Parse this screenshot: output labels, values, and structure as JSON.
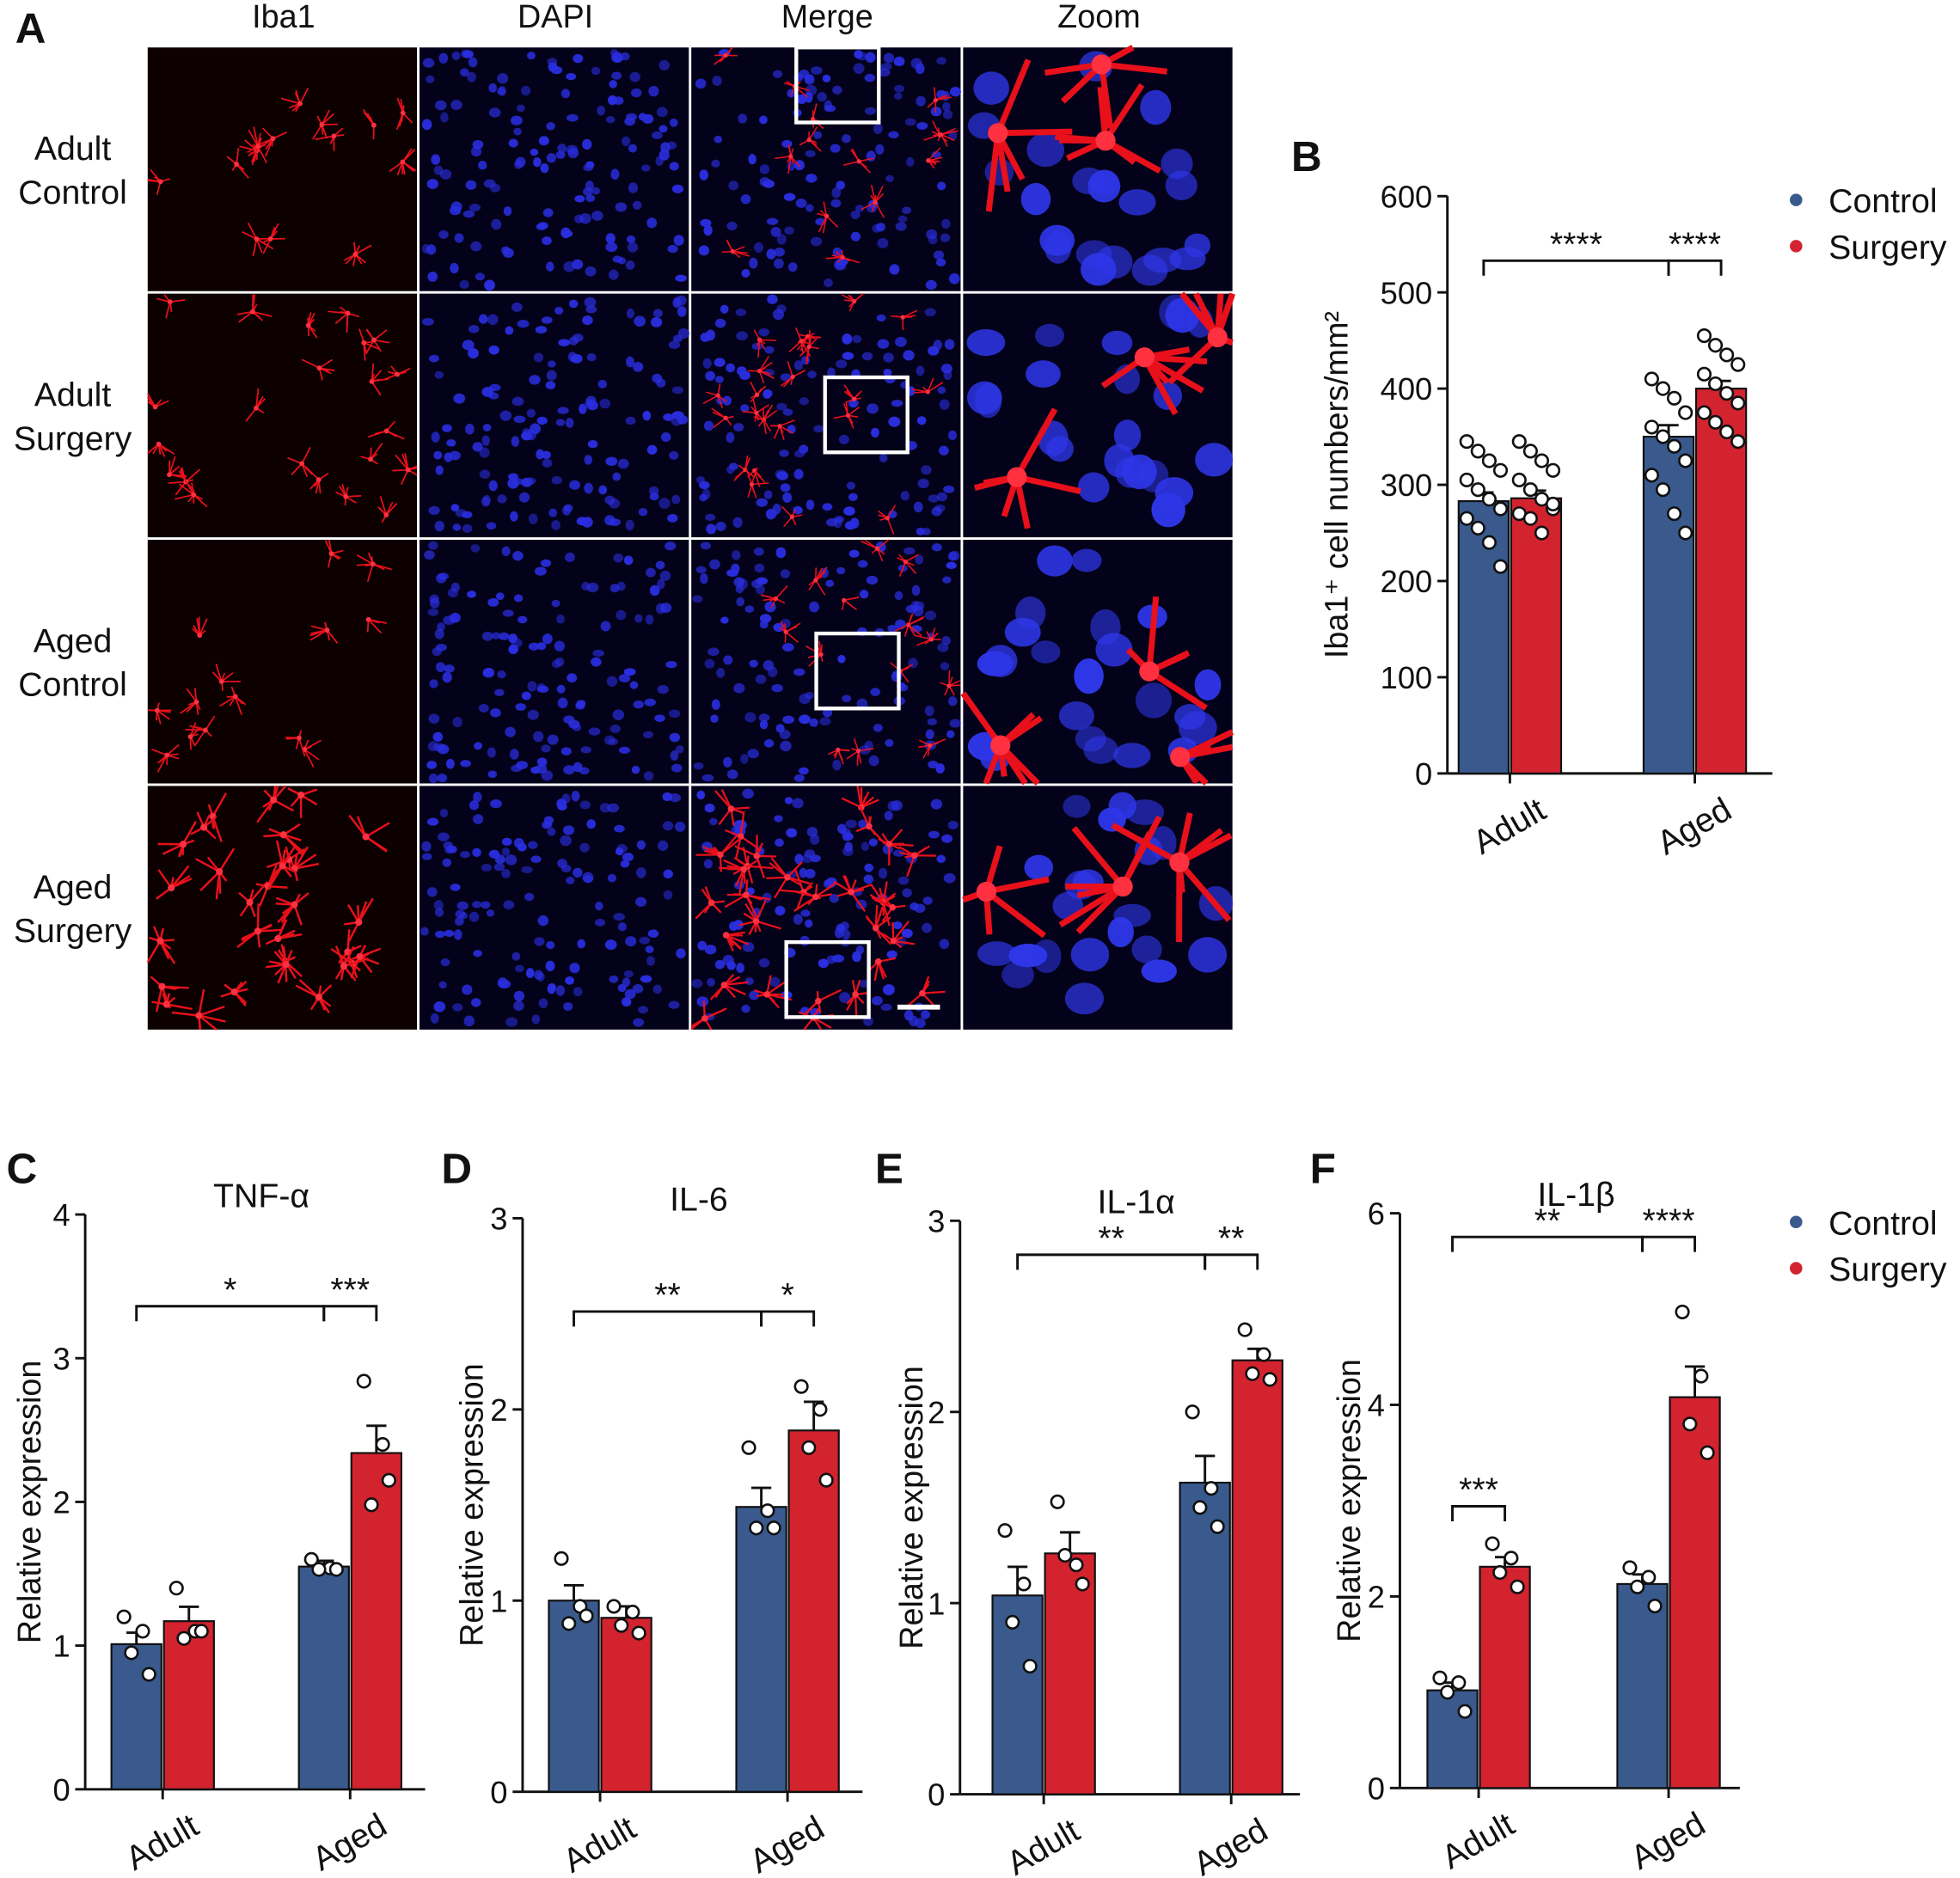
{
  "image_panel": {
    "label": "A",
    "columns": [
      "Iba1",
      "DAPI",
      "Merge",
      "Zoom"
    ],
    "rows": [
      [
        "Adult",
        "Control"
      ],
      [
        "Adult",
        "Surgery"
      ],
      [
        "Aged",
        "Control"
      ],
      [
        "Aged",
        "Surgery"
      ]
    ]
  },
  "chart_data": [
    {
      "type": "bar",
      "panel": "B",
      "ylabel": "Iba1⁺ cell numbers/mm²",
      "categories": [
        "Adult",
        "Aged"
      ],
      "series": [
        {
          "name": "Control",
          "color": "#3a5a8e",
          "values": [
            283,
            350
          ],
          "errors": [
            9,
            12
          ],
          "points": [
            [
              345,
              335,
              325,
              315,
              305,
              295,
              285,
              275,
              265,
              255,
              240,
              215
            ],
            [
              410,
              400,
              390,
              375,
              360,
              350,
              340,
              325,
              310,
              295,
              270,
              250
            ]
          ]
        },
        {
          "name": "Surgery",
          "color": "#d3232f",
          "values": [
            286,
            400
          ],
          "errors": [
            8,
            8
          ],
          "points": [
            [
              345,
              335,
              325,
              315,
              305,
              295,
              285,
              275,
              270,
              265,
              250,
              280
            ],
            [
              455,
              445,
              435,
              425,
              415,
              405,
              395,
              385,
              375,
              365,
              355,
              345
            ]
          ]
        }
      ],
      "ylim": [
        0,
        600
      ],
      "yticks": [
        0,
        100,
        200,
        300,
        400,
        500,
        600
      ],
      "significance": [
        {
          "label": "****",
          "between": [
            [
              0,
              0
            ],
            [
              1,
              0
            ]
          ]
        },
        {
          "label": "****",
          "between": [
            [
              1,
              0
            ],
            [
              1,
              1
            ]
          ]
        }
      ],
      "legend": true
    },
    {
      "type": "bar",
      "panel": "C",
      "title": "TNF-α",
      "ylabel": "Relative expression",
      "categories": [
        "Adult",
        "Aged"
      ],
      "series": [
        {
          "name": "Control",
          "color": "#3a5a8e",
          "values": [
            1.01,
            1.55
          ],
          "errors": [
            0.08,
            0.04
          ],
          "points": [
            [
              1.2,
              1.1,
              0.95,
              0.8
            ],
            [
              1.6,
              1.54,
              1.53,
              1.53
            ]
          ]
        },
        {
          "name": "Surgery",
          "color": "#d3232f",
          "values": [
            1.17,
            2.34
          ],
          "errors": [
            0.1,
            0.19
          ],
          "points": [
            [
              1.4,
              1.1,
              1.05,
              1.1
            ],
            [
              2.84,
              2.4,
              1.98,
              2.15
            ]
          ]
        }
      ],
      "ylim": [
        0,
        4
      ],
      "yticks": [
        0,
        1,
        2,
        3,
        4
      ],
      "significance": [
        {
          "label": "*",
          "between": [
            [
              0,
              0
            ],
            [
              1,
              0
            ]
          ]
        },
        {
          "label": "***",
          "between": [
            [
              1,
              0
            ],
            [
              1,
              1
            ]
          ]
        }
      ],
      "legend": false
    },
    {
      "type": "bar",
      "panel": "D",
      "title": "IL-6",
      "ylabel": "Relative expression",
      "categories": [
        "Adult",
        "Aged"
      ],
      "series": [
        {
          "name": "Control",
          "color": "#3a5a8e",
          "values": [
            1.0,
            1.49
          ],
          "errors": [
            0.08,
            0.1
          ],
          "points": [
            [
              1.22,
              0.97,
              0.88,
              0.92
            ],
            [
              1.8,
              1.47,
              1.38,
              1.38
            ]
          ]
        },
        {
          "name": "Surgery",
          "color": "#d3232f",
          "values": [
            0.91,
            1.89
          ],
          "errors": [
            0.06,
            0.15
          ],
          "points": [
            [
              0.97,
              0.94,
              0.87,
              0.83
            ],
            [
              2.12,
              2.0,
              1.8,
              1.63
            ]
          ]
        }
      ],
      "ylim": [
        0,
        3
      ],
      "yticks": [
        0,
        1,
        2,
        3
      ],
      "significance": [
        {
          "label": "**",
          "between": [
            [
              0,
              0
            ],
            [
              1,
              0
            ]
          ]
        },
        {
          "label": "*",
          "between": [
            [
              1,
              0
            ],
            [
              1,
              1
            ]
          ]
        }
      ],
      "legend": false
    },
    {
      "type": "bar",
      "panel": "E",
      "title": "IL-1α",
      "ylabel": "Relative expression",
      "categories": [
        "Adult",
        "Aged"
      ],
      "series": [
        {
          "name": "Control",
          "color": "#3a5a8e",
          "values": [
            1.04,
            1.63
          ],
          "errors": [
            0.15,
            0.14
          ],
          "points": [
            [
              1.38,
              1.1,
              0.9,
              0.67
            ],
            [
              2.0,
              1.6,
              1.5,
              1.4
            ]
          ]
        },
        {
          "name": "Surgery",
          "color": "#d3232f",
          "values": [
            1.26,
            2.27
          ],
          "errors": [
            0.11,
            0.06
          ],
          "points": [
            [
              1.53,
              1.2,
              1.25,
              1.1
            ],
            [
              2.43,
              2.3,
              2.2,
              2.17
            ]
          ]
        }
      ],
      "ylim": [
        0,
        3
      ],
      "yticks": [
        0,
        1,
        2,
        3
      ],
      "significance": [
        {
          "label": "**",
          "between": [
            [
              0,
              0
            ],
            [
              1,
              0
            ]
          ]
        },
        {
          "label": "**",
          "between": [
            [
              1,
              0
            ],
            [
              1,
              1
            ]
          ]
        }
      ],
      "legend": false
    },
    {
      "type": "bar",
      "panel": "F",
      "title": "IL-1β",
      "ylabel": "Relative expression",
      "categories": [
        "Adult",
        "Aged"
      ],
      "series": [
        {
          "name": "Control",
          "color": "#3a5a8e",
          "values": [
            1.02,
            2.13
          ],
          "errors": [
            0.08,
            0.1
          ],
          "points": [
            [
              1.15,
              1.1,
              1.0,
              0.8
            ],
            [
              2.3,
              2.2,
              2.1,
              1.9
            ]
          ]
        },
        {
          "name": "Surgery",
          "color": "#d3232f",
          "values": [
            2.31,
            4.08
          ],
          "errors": [
            0.1,
            0.32
          ],
          "points": [
            [
              2.55,
              2.4,
              2.25,
              2.1
            ],
            [
              4.97,
              4.3,
              3.8,
              3.5
            ]
          ]
        }
      ],
      "ylim": [
        0,
        6
      ],
      "yticks": [
        0,
        2,
        4,
        6
      ],
      "significance": [
        {
          "label": "**",
          "between": [
            [
              0,
              0
            ],
            [
              1,
              0
            ]
          ]
        },
        {
          "label": "****",
          "between": [
            [
              1,
              0
            ],
            [
              1,
              1
            ]
          ]
        },
        {
          "label": "***",
          "between": [
            [
              0,
              0
            ],
            [
              0,
              1
            ]
          ]
        }
      ],
      "legend": true
    }
  ]
}
